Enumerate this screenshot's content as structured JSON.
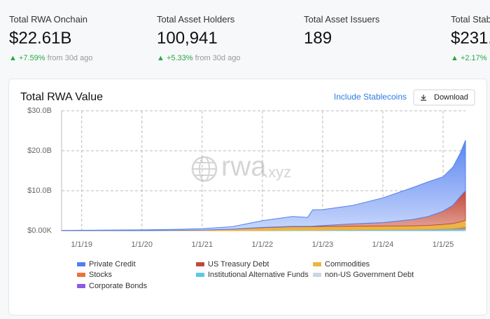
{
  "stats": [
    {
      "label": "Total RWA Onchain",
      "value": "$22.61B",
      "change": "+7.59%",
      "note": "from 30d ago"
    },
    {
      "label": "Total Asset Holders",
      "value": "100,941",
      "change": "+5.33%",
      "note": "from 30d ago"
    },
    {
      "label": "Total Asset Issuers",
      "value": "189"
    },
    {
      "label": "Total Stab",
      "value": "$231.",
      "change": "+2.17%"
    }
  ],
  "toggle": "Include Stablecoins",
  "download": "Download",
  "watermark": {
    "main": "rwa",
    "suffix": ".xyz"
  },
  "chart_data": {
    "type": "stacked_area",
    "title": "Total RWA Value",
    "x": [
      "9/1/18",
      "1/1/19",
      "7/1/19",
      "1/1/20",
      "7/1/20",
      "1/1/21",
      "7/1/21",
      "1/1/22",
      "7/1/22",
      "10/1/22",
      "11/1/22",
      "1/1/23",
      "7/1/23",
      "1/1/24",
      "7/1/24",
      "10/1/24",
      "1/1/25",
      "3/1/25",
      "4/15/25",
      "5/15/25"
    ],
    "xlim": [
      "9/1/18",
      "5/15/25"
    ],
    "xticks": [
      "1/1/19",
      "1/1/20",
      "1/1/21",
      "1/1/22",
      "1/1/23",
      "1/1/24",
      "1/1/25"
    ],
    "ylim": [
      0,
      30
    ],
    "yticks": [
      {
        "value": 0,
        "label": "$0.00K"
      },
      {
        "value": 10,
        "label": "$10.0B"
      },
      {
        "value": 20,
        "label": "$20.0B"
      },
      {
        "value": 30,
        "label": "$30.0B"
      }
    ],
    "grid": true,
    "series": [
      {
        "name": "Private Credit",
        "color": "#4f7ff0",
        "values": [
          0.03,
          0.07,
          0.11,
          0.15,
          0.22,
          0.34,
          0.6,
          1.7,
          2.5,
          2.2,
          4.1,
          4.0,
          4.6,
          6.2,
          8.0,
          8.7,
          8.6,
          9.6,
          10.9,
          12.63
        ]
      },
      {
        "name": "US Treasury Debt",
        "color": "#c0493a",
        "values": [
          0,
          0,
          0,
          0,
          0,
          0.01,
          0.02,
          0.05,
          0.08,
          0.1,
          0.12,
          0.2,
          0.6,
          0.85,
          1.6,
          2.2,
          3.3,
          4.6,
          6.4,
          7.4
        ]
      },
      {
        "name": "Commodities",
        "color": "#e9b545",
        "values": [
          0.02,
          0.03,
          0.04,
          0.05,
          0.08,
          0.15,
          0.35,
          0.7,
          0.9,
          0.9,
          0.9,
          0.9,
          0.9,
          0.9,
          0.9,
          0.95,
          1.1,
          1.2,
          1.4,
          1.6
        ]
      },
      {
        "name": "Stocks",
        "color": "#f0703c",
        "values": [
          0,
          0,
          0,
          0,
          0,
          0,
          0,
          0,
          0,
          0,
          0,
          0.01,
          0.01,
          0.02,
          0.03,
          0.04,
          0.08,
          0.15,
          0.3,
          0.4
        ]
      },
      {
        "name": "Institutional Alternative Funds",
        "color": "#5cc9e2",
        "values": [
          0,
          0,
          0,
          0,
          0,
          0,
          0.02,
          0.05,
          0.08,
          0.1,
          0.1,
          0.12,
          0.15,
          0.18,
          0.2,
          0.25,
          0.3,
          0.35,
          0.4,
          0.45
        ]
      },
      {
        "name": "non-US Government Debt",
        "color": "#c9d6e6",
        "values": [
          0,
          0,
          0,
          0,
          0,
          0,
          0,
          0,
          0.01,
          0.01,
          0.01,
          0.02,
          0.03,
          0.04,
          0.05,
          0.05,
          0.06,
          0.06,
          0.07,
          0.08
        ]
      },
      {
        "name": "Corporate Bonds",
        "color": "#8d5ae6",
        "values": [
          0,
          0,
          0,
          0,
          0,
          0,
          0,
          0,
          0,
          0,
          0,
          0.01,
          0.02,
          0.02,
          0.03,
          0.03,
          0.03,
          0.04,
          0.04,
          0.05
        ]
      }
    ]
  }
}
